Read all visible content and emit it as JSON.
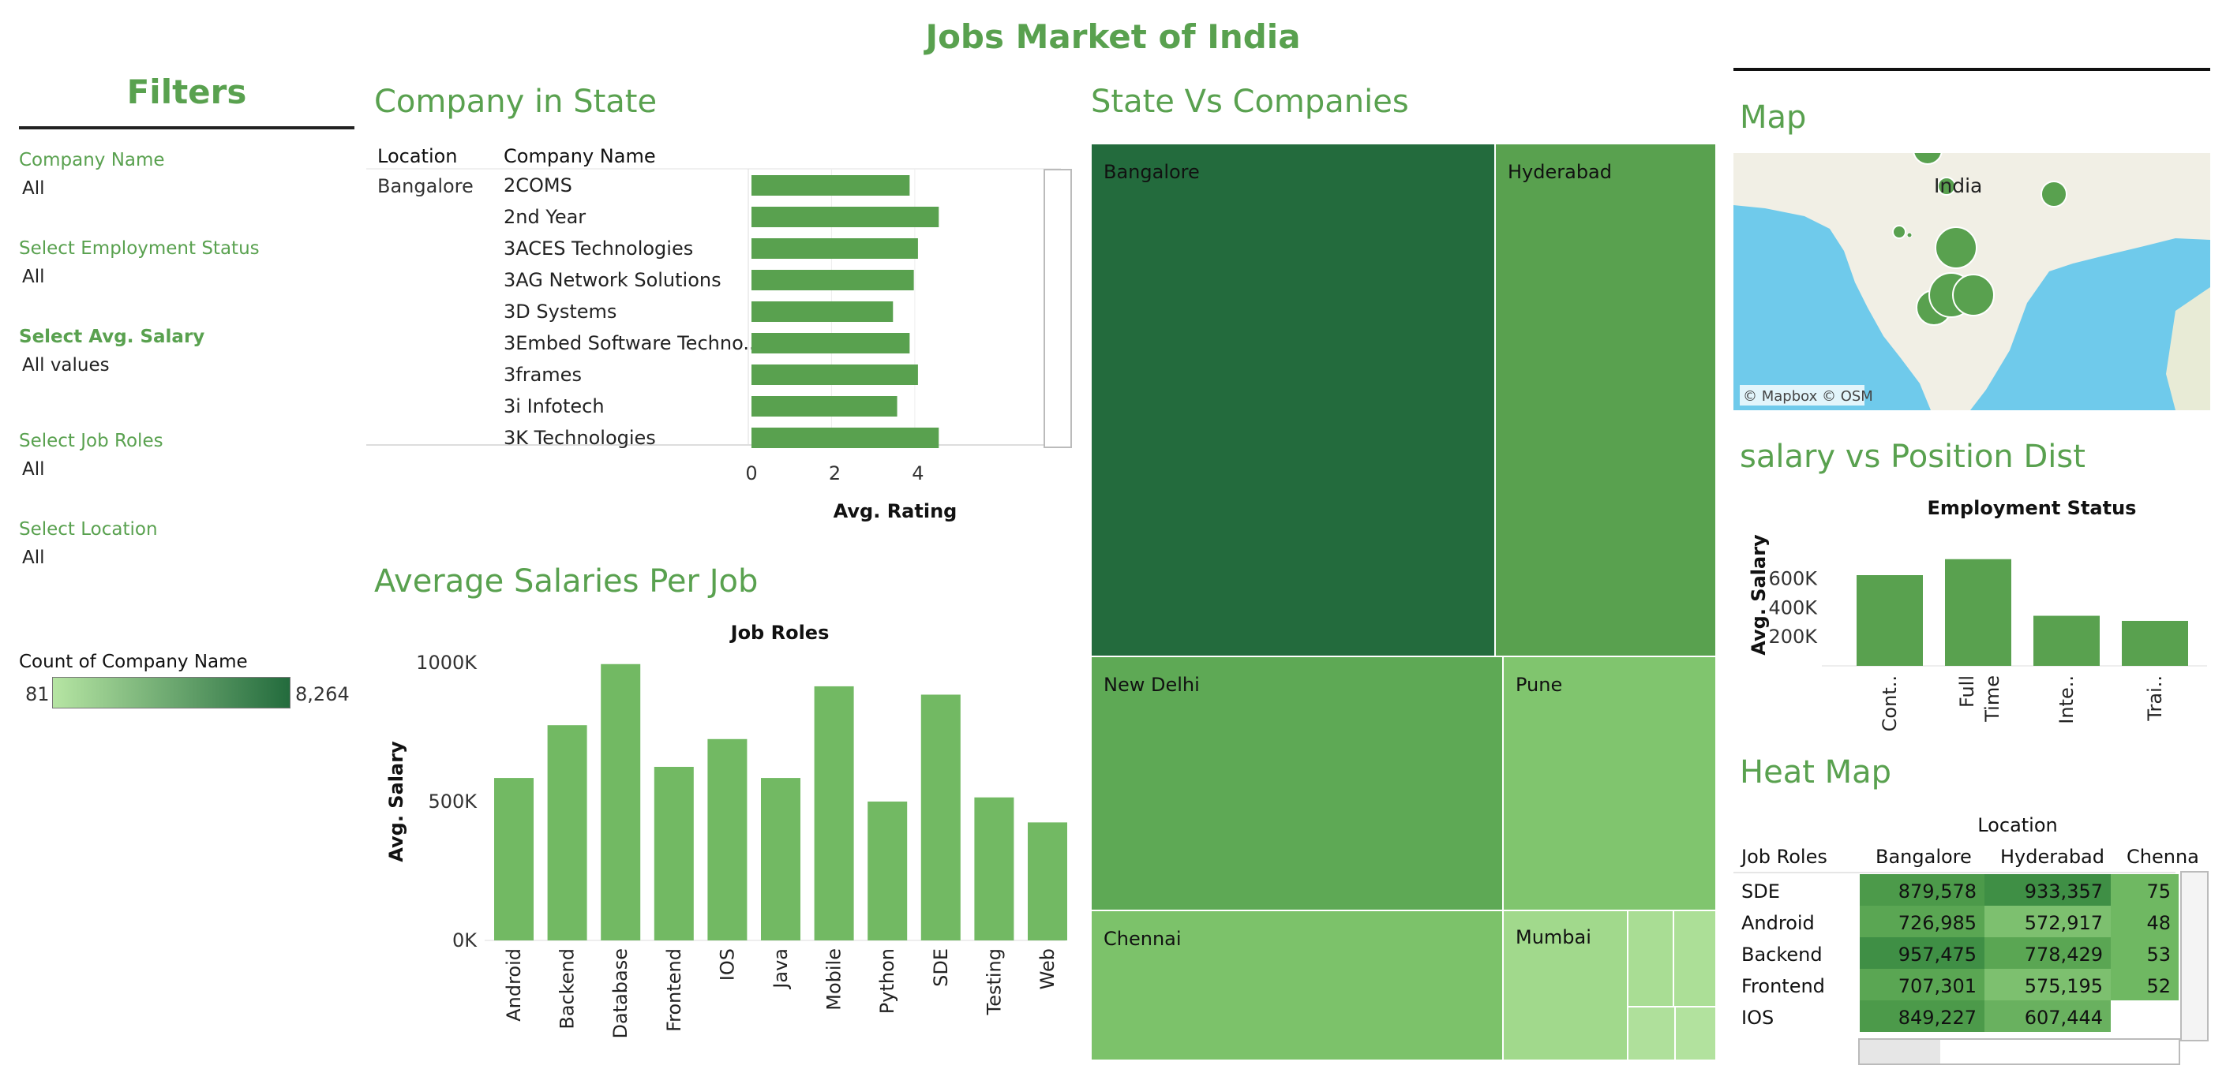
{
  "dashboard_title": "Jobs Market of India",
  "filters": {
    "title": "Filters",
    "items": [
      {
        "label": "Company Name",
        "value": "All"
      },
      {
        "label": "Select Employment Status",
        "value": "All"
      },
      {
        "label": "Select  Avg. Salary",
        "value": "All values"
      },
      {
        "label": "Select Job Roles",
        "value": "All"
      },
      {
        "label": "Select Location",
        "value": "All"
      }
    ],
    "legend": {
      "title": "Count of Company Name",
      "min": "81",
      "max": "8,264"
    }
  },
  "colors": {
    "accent": "#59a14f",
    "dark": "#236b3d",
    "light": "#a8dc92"
  },
  "chart_data": [
    {
      "type": "bar",
      "title": "Company in State",
      "orientation": "horizontal",
      "row_headers": [
        "Location",
        "Company Name"
      ],
      "location": "Bangalore",
      "categories": [
        "2COMS",
        "2nd Year",
        "3ACES Technologies",
        "3AG Network Solutions",
        "3D Systems",
        "3Embed Software Techno..",
        "3frames",
        "3i Infotech",
        "3K Technologies"
      ],
      "values": [
        3.8,
        4.5,
        4.0,
        3.9,
        3.4,
        3.8,
        4.0,
        3.5,
        4.5
      ],
      "xlabel": "Avg. Rating",
      "xticks": [
        "0",
        "2",
        "4"
      ],
      "xlim": [
        0,
        5.5
      ]
    },
    {
      "type": "treemap",
      "title": "State Vs Companies",
      "categories": [
        "Bangalore",
        "Hyderabad",
        "New Delhi",
        "Pune",
        "Chennai",
        "Mumbai"
      ]
    },
    {
      "type": "map",
      "title": "Map",
      "label": "India",
      "attribution": "© Mapbox © OSM"
    },
    {
      "type": "bar",
      "title": "Average  Salaries Per Job",
      "subtitle": "Job Roles",
      "categories": [
        "Android",
        "Backend",
        "Database",
        "Frontend",
        "IOS",
        "Java",
        "Mobile",
        "Python",
        "SDE",
        "Testing",
        "Web"
      ],
      "values": [
        585000,
        775000,
        995000,
        625000,
        725000,
        585000,
        915000,
        500000,
        885000,
        515000,
        425000
      ],
      "ylabel": "Avg. Salary",
      "yticks": [
        "1000K",
        "500K",
        "0K"
      ],
      "ylim": [
        0,
        1000000
      ]
    },
    {
      "type": "bar",
      "title": "salary vs Position Dist",
      "subtitle": "Employment Status",
      "categories": [
        "Cont..",
        "Full Time",
        "Inte..",
        "Trai.."
      ],
      "values": [
        625000,
        735000,
        345000,
        310000
      ],
      "ylabel": "Avg. Salary",
      "yticks": [
        "600K",
        "400K",
        "200K"
      ],
      "ylim": [
        0,
        750000
      ]
    },
    {
      "type": "heatmap",
      "title": "Heat Map",
      "column_header": "Location",
      "row_header": "Job Roles",
      "columns": [
        "Bangalore",
        "Hyderabad",
        "Chenna"
      ],
      "rows": [
        {
          "role": "SDE",
          "values": [
            "879,578",
            "933,357",
            "75"
          ]
        },
        {
          "role": "Android",
          "values": [
            "726,985",
            "572,917",
            "48"
          ]
        },
        {
          "role": "Backend",
          "values": [
            "957,475",
            "778,429",
            "53"
          ]
        },
        {
          "role": "Frontend",
          "values": [
            "707,301",
            "575,195",
            "52"
          ]
        },
        {
          "role": "IOS",
          "values": [
            "849,227",
            "607,444",
            ""
          ]
        }
      ]
    }
  ]
}
